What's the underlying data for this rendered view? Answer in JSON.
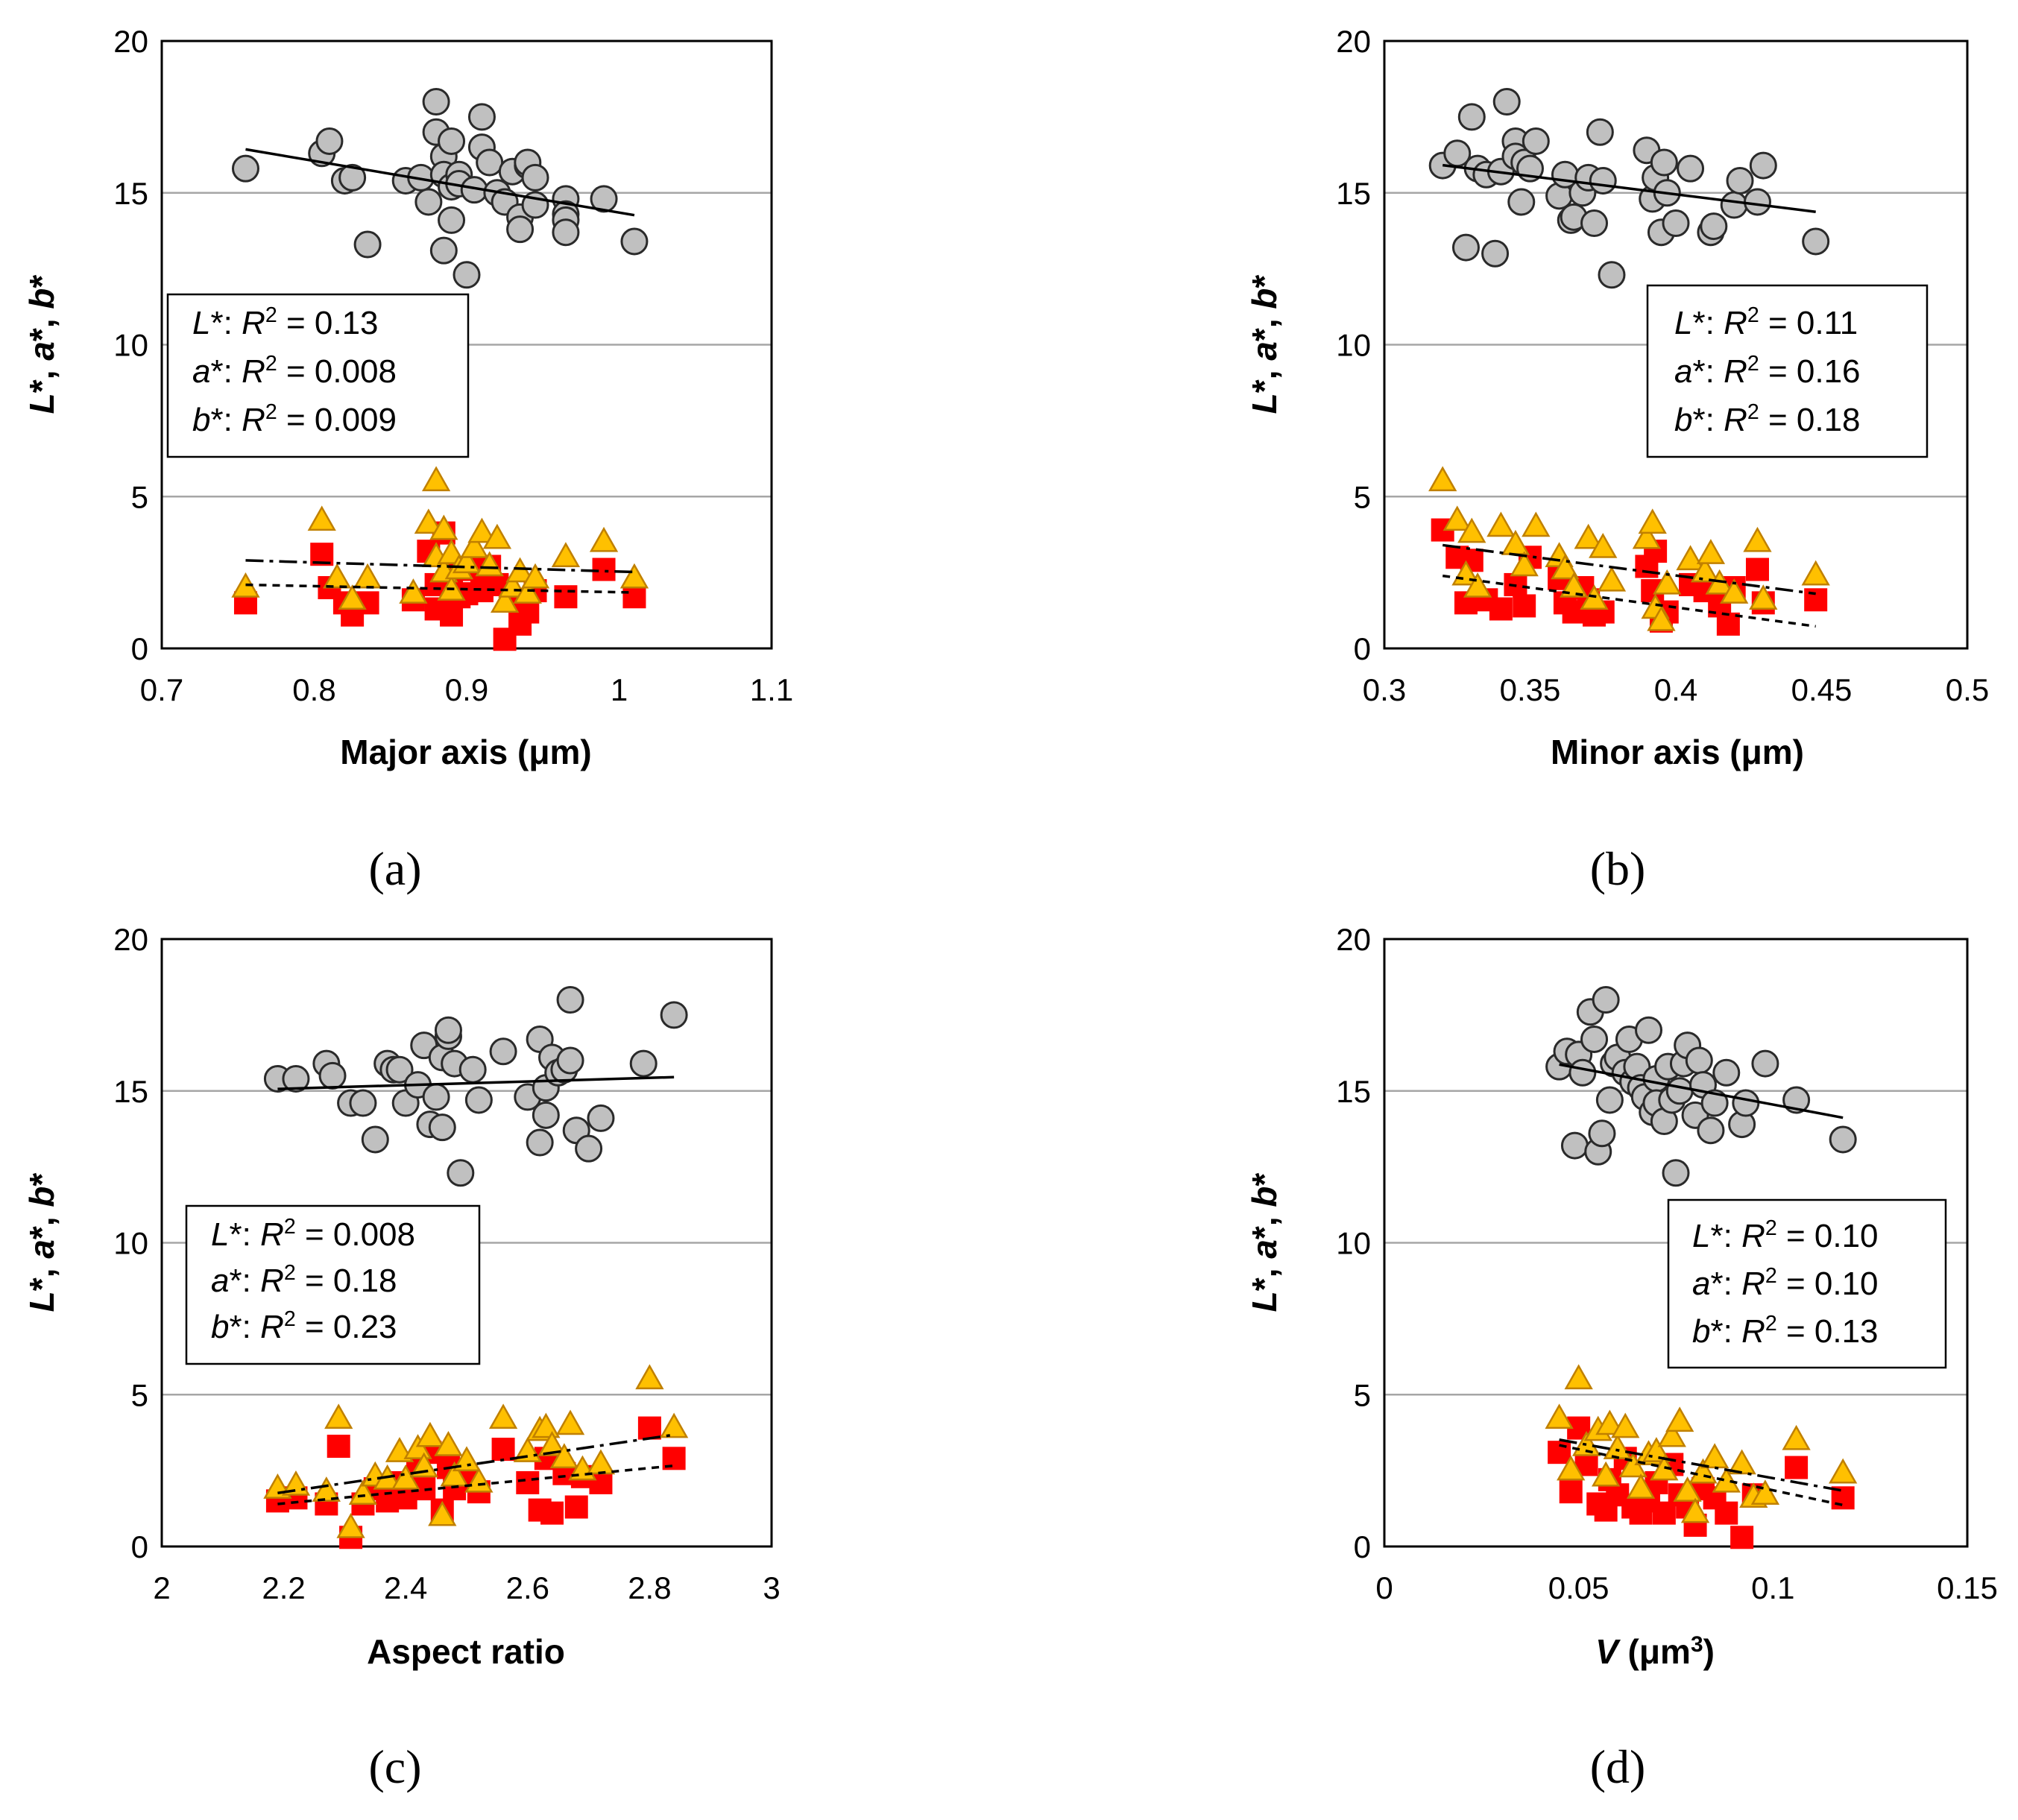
{
  "colors": {
    "L": "#c0c0c0",
    "a": "#ff0000",
    "b": "#ffc000",
    "grid": "#a6a6a6",
    "axis": "#000000"
  },
  "chart_data": [
    {
      "type": "scatter",
      "panel": "(a)",
      "xlabel": "Major axis (μm)",
      "ylabel": "L*, a*, b*",
      "xlim": [
        0.7,
        1.1
      ],
      "ylim": [
        0,
        20
      ],
      "xticks": [
        "0.7",
        "0.8",
        "0.9",
        "1",
        "1.1"
      ],
      "yticks": [
        "0",
        "5",
        "10",
        "15",
        "20"
      ],
      "legend": {
        "position": "middle-left",
        "lines": [
          "L*: R2 = 0.13",
          "a*: R2 = 0.008",
          "b*: R2 = 0.009"
        ]
      },
      "series": [
        {
          "name": "L*",
          "marker": "circle",
          "trend": {
            "slope": -8.5,
            "intercept": 22.85
          },
          "x": [
            0.755,
            0.805,
            0.81,
            0.82,
            0.825,
            0.835,
            0.86,
            0.87,
            0.875,
            0.88,
            0.88,
            0.885,
            0.885,
            0.89,
            0.89,
            0.895,
            0.89,
            0.885,
            0.895,
            0.9,
            0.905,
            0.91,
            0.91,
            0.915,
            0.92,
            0.925,
            0.93,
            0.935,
            0.935,
            0.94,
            0.94,
            0.945,
            0.945,
            0.965,
            0.965,
            0.965,
            0.965,
            0.99,
            1.01
          ],
          "y": [
            15.8,
            16.3,
            16.7,
            15.4,
            15.5,
            13.3,
            15.4,
            15.5,
            14.7,
            18,
            17,
            16.2,
            15.6,
            16.7,
            15.2,
            15.6,
            14.1,
            13.1,
            15.3,
            12.3,
            15.1,
            16.5,
            17.5,
            16,
            15,
            14.7,
            15.7,
            14.2,
            13.8,
            15.9,
            16,
            15.5,
            14.6,
            14.8,
            14.3,
            14.1,
            13.7,
            14.8,
            13.4
          ]
        },
        {
          "name": "a*",
          "marker": "square",
          "trend": {
            "slope": -1.0,
            "intercept": 2.85
          },
          "x": [
            0.755,
            0.805,
            0.81,
            0.82,
            0.825,
            0.835,
            0.865,
            0.875,
            0.88,
            0.88,
            0.885,
            0.89,
            0.89,
            0.895,
            0.9,
            0.905,
            0.91,
            0.915,
            0.92,
            0.925,
            0.93,
            0.935,
            0.94,
            0.945,
            0.965,
            0.99,
            1.01
          ],
          "y": [
            1.5,
            3.1,
            2,
            1.5,
            1.1,
            1.5,
            1.6,
            3.2,
            1.3,
            2.1,
            3.8,
            1.1,
            2.5,
            1.7,
            1.8,
            2.6,
            1.9,
            2.7,
            2.1,
            0.3,
            1.6,
            0.8,
            1.2,
            1.9,
            1.7,
            2.6,
            1.7
          ]
        },
        {
          "name": "b*",
          "marker": "triangle",
          "trend": {
            "slope": -1.5,
            "intercept": 4.03
          },
          "x": [
            0.755,
            0.805,
            0.815,
            0.825,
            0.835,
            0.865,
            0.875,
            0.88,
            0.88,
            0.885,
            0.885,
            0.89,
            0.89,
            0.895,
            0.9,
            0.905,
            0.91,
            0.915,
            0.92,
            0.925,
            0.93,
            0.935,
            0.94,
            0.945,
            0.965,
            0.99,
            1.01
          ],
          "y": [
            2,
            4.2,
            2.3,
            1.6,
            2.3,
            1.8,
            4.1,
            5.5,
            3,
            3.9,
            2.5,
            1.9,
            3.1,
            2.6,
            2.8,
            3.3,
            3.8,
            2.7,
            3.6,
            1.5,
            2,
            2.5,
            1.8,
            2.3,
            3,
            3.5,
            2.3
          ]
        }
      ]
    },
    {
      "type": "scatter",
      "panel": "(b)",
      "xlabel": "Minor axis (μm)",
      "ylabel": "L*, a*, b*",
      "xlim": [
        0.3,
        0.5
      ],
      "ylim": [
        0,
        20
      ],
      "xticks": [
        "0.3",
        "0.35",
        "0.4",
        "0.45",
        "0.5"
      ],
      "yticks": [
        "0",
        "5",
        "10",
        "15",
        "20"
      ],
      "legend": {
        "position": "middle-right",
        "lines": [
          "L*: R2 = 0.11",
          "a*: R2 = 0.16",
          "b*: R2 = 0.18"
        ]
      },
      "series": [
        {
          "name": "L*",
          "marker": "circle",
          "trend": {
            "slope": -12.0,
            "intercept": 19.75
          },
          "x": [
            0.32,
            0.325,
            0.328,
            0.33,
            0.332,
            0.335,
            0.338,
            0.34,
            0.342,
            0.345,
            0.345,
            0.347,
            0.348,
            0.35,
            0.352,
            0.36,
            0.362,
            0.364,
            0.365,
            0.368,
            0.37,
            0.372,
            0.374,
            0.375,
            0.378,
            0.39,
            0.392,
            0.393,
            0.395,
            0.396,
            0.397,
            0.4,
            0.405,
            0.412,
            0.413,
            0.42,
            0.422,
            0.428,
            0.43,
            0.448
          ],
          "y": [
            15.9,
            16.3,
            13.2,
            17.5,
            15.8,
            15.6,
            13,
            15.7,
            18,
            16.7,
            16.2,
            14.7,
            16,
            15.8,
            16.7,
            14.9,
            15.6,
            14.1,
            14.2,
            15,
            15.5,
            14,
            17,
            15.4,
            12.3,
            16.4,
            14.8,
            15.5,
            13.7,
            16,
            15,
            14,
            15.8,
            13.7,
            13.9,
            14.6,
            15.4,
            14.7,
            15.9,
            13.4
          ]
        },
        {
          "name": "a*",
          "marker": "square",
          "trend": {
            "slope": -13.0,
            "intercept": 6.55
          },
          "x": [
            0.32,
            0.325,
            0.328,
            0.33,
            0.335,
            0.34,
            0.345,
            0.348,
            0.35,
            0.36,
            0.362,
            0.365,
            0.368,
            0.37,
            0.372,
            0.375,
            0.39,
            0.392,
            0.393,
            0.395,
            0.397,
            0.405,
            0.41,
            0.415,
            0.418,
            0.42,
            0.428,
            0.43,
            0.448
          ],
          "y": [
            3.9,
            3,
            1.5,
            2.9,
            1.6,
            1.3,
            2.1,
            1.4,
            3,
            2.3,
            1.5,
            1.2,
            2,
            1.6,
            1.1,
            1.2,
            2.7,
            1.9,
            3.2,
            0.9,
            1.2,
            2.1,
            1.9,
            1.4,
            0.8,
            2,
            2.6,
            1.5,
            1.6
          ]
        },
        {
          "name": "b*",
          "marker": "triangle",
          "trend": {
            "slope": -12.5,
            "intercept": 7.4
          },
          "x": [
            0.32,
            0.325,
            0.328,
            0.33,
            0.332,
            0.34,
            0.345,
            0.348,
            0.352,
            0.36,
            0.362,
            0.365,
            0.37,
            0.372,
            0.375,
            0.378,
            0.39,
            0.392,
            0.393,
            0.395,
            0.397,
            0.405,
            0.41,
            0.412,
            0.415,
            0.42,
            0.428,
            0.43,
            0.448
          ],
          "y": [
            5.5,
            4.2,
            2.4,
            3.8,
            2,
            4,
            3.4,
            2.7,
            4,
            3,
            2.6,
            2,
            3.6,
            1.6,
            3.3,
            2.2,
            3.6,
            4.1,
            1.3,
            0.9,
            2.1,
            2.9,
            2.5,
            3.1,
            2.1,
            1.8,
            3.5,
            1.6,
            2.4
          ]
        }
      ]
    },
    {
      "type": "scatter",
      "panel": "(c)",
      "xlabel": "Aspect ratio",
      "ylabel": "L*, a*, b*",
      "xlim": [
        2,
        3
      ],
      "ylim": [
        0,
        20
      ],
      "xticks": [
        "2",
        "2.2",
        "2.4",
        "2.6",
        "2.8",
        "3"
      ],
      "yticks": [
        "0",
        "5",
        "10",
        "15",
        "20"
      ],
      "legend": {
        "position": "middle-left",
        "lines": [
          "L*: R2 = 0.008",
          "a*: R2 = 0.18",
          "b*: R2 = 0.23"
        ]
      },
      "series": [
        {
          "name": "L*",
          "marker": "circle",
          "trend": {
            "slope": 0.6,
            "intercept": 13.75
          },
          "x": [
            2.19,
            2.22,
            2.27,
            2.28,
            2.31,
            2.33,
            2.35,
            2.37,
            2.38,
            2.39,
            2.4,
            2.42,
            2.43,
            2.44,
            2.45,
            2.46,
            2.46,
            2.47,
            2.47,
            2.48,
            2.49,
            2.51,
            2.52,
            2.56,
            2.6,
            2.62,
            2.62,
            2.63,
            2.63,
            2.64,
            2.65,
            2.66,
            2.67,
            2.67,
            2.68,
            2.7,
            2.72,
            2.79,
            2.84
          ],
          "y": [
            15.4,
            15.4,
            15.9,
            15.5,
            14.6,
            14.6,
            13.4,
            15.9,
            15.7,
            15.7,
            14.6,
            15.2,
            16.5,
            13.9,
            14.8,
            13.8,
            16.1,
            16.8,
            17,
            15.9,
            12.3,
            15.7,
            14.7,
            16.3,
            14.8,
            13.3,
            16.7,
            14.2,
            15.1,
            16.1,
            15.6,
            15.7,
            18,
            16,
            13.7,
            13.1,
            14.1,
            15.9,
            17.5
          ]
        },
        {
          "name": "a*",
          "marker": "square",
          "trend": {
            "slope": 1.94,
            "intercept": -2.85
          },
          "x": [
            2.19,
            2.22,
            2.27,
            2.29,
            2.31,
            2.33,
            2.35,
            2.37,
            2.39,
            2.4,
            2.42,
            2.43,
            2.44,
            2.46,
            2.47,
            2.48,
            2.5,
            2.52,
            2.56,
            2.6,
            2.62,
            2.63,
            2.64,
            2.66,
            2.68,
            2.69,
            2.72,
            2.8,
            2.84
          ],
          "y": [
            1.5,
            1.6,
            1.4,
            3.3,
            0.3,
            1.4,
            1.9,
            1.5,
            2.1,
            1.6,
            2.7,
            1.9,
            3.1,
            1.2,
            2.6,
            1.9,
            2.2,
            1.8,
            3.2,
            2.1,
            1.2,
            2.9,
            1.1,
            2.4,
            1.3,
            2.3,
            2.1,
            3.9,
            2.9
          ]
        },
        {
          "name": "b*",
          "marker": "triangle",
          "trend": {
            "slope": 2.95,
            "intercept": -4.7
          },
          "x": [
            2.19,
            2.22,
            2.27,
            2.29,
            2.31,
            2.33,
            2.35,
            2.37,
            2.39,
            2.4,
            2.42,
            2.43,
            2.44,
            2.46,
            2.47,
            2.48,
            2.5,
            2.52,
            2.56,
            2.6,
            2.62,
            2.63,
            2.64,
            2.66,
            2.67,
            2.69,
            2.72,
            2.8,
            2.84
          ],
          "y": [
            1.9,
            2,
            1.8,
            4.2,
            0.6,
            1.7,
            2.3,
            2.2,
            3.1,
            2.2,
            3.2,
            2.6,
            3.6,
            1,
            3.3,
            2.3,
            2.8,
            2.1,
            4.2,
            3.1,
            3.8,
            3.9,
            3.3,
            2.9,
            4,
            2.5,
            2.7,
            5.5,
            3.9
          ]
        }
      ]
    },
    {
      "type": "scatter",
      "panel": "(d)",
      "xlabel": "V (μm3)",
      "ylabel": "L*, a*, b*",
      "xlim": [
        0,
        0.15
      ],
      "ylim": [
        0,
        20
      ],
      "xticks": [
        "0",
        "0.05",
        "0.1",
        "0.15"
      ],
      "yticks": [
        "0",
        "5",
        "10",
        "15",
        "20"
      ],
      "legend": {
        "position": "middle-right",
        "lines": [
          "L*: R2 = 0.10",
          "a*: R2 = 0.10",
          "b*: R2 = 0.13"
        ]
      },
      "series": [
        {
          "name": "L*",
          "marker": "circle",
          "trend": {
            "slope": -24,
            "intercept": 16.95
          },
          "x": [
            0.045,
            0.047,
            0.049,
            0.05,
            0.051,
            0.053,
            0.054,
            0.055,
            0.056,
            0.057,
            0.058,
            0.059,
            0.06,
            0.062,
            0.063,
            0.064,
            0.065,
            0.066,
            0.067,
            0.068,
            0.069,
            0.07,
            0.07,
            0.072,
            0.073,
            0.074,
            0.075,
            0.076,
            0.077,
            0.078,
            0.08,
            0.081,
            0.082,
            0.084,
            0.085,
            0.088,
            0.092,
            0.093,
            0.098,
            0.106,
            0.118
          ],
          "y": [
            15.8,
            16.3,
            13.2,
            16.2,
            15.6,
            17.6,
            16.7,
            13,
            13.6,
            18,
            14.7,
            15.9,
            16.1,
            15.6,
            16.7,
            15.3,
            15.8,
            15.1,
            14.8,
            17,
            14.3,
            15.4,
            14.6,
            14,
            15.8,
            14.7,
            12.3,
            15,
            15.9,
            16.5,
            14.2,
            16,
            15.2,
            13.7,
            14.6,
            15.6,
            13.9,
            14.6,
            15.9,
            14.7,
            13.4
          ]
        },
        {
          "name": "a*",
          "marker": "square",
          "trend": {
            "slope": -27,
            "intercept": 4.55
          },
          "x": [
            0.045,
            0.048,
            0.05,
            0.052,
            0.055,
            0.057,
            0.058,
            0.06,
            0.062,
            0.064,
            0.066,
            0.068,
            0.07,
            0.072,
            0.074,
            0.076,
            0.078,
            0.08,
            0.082,
            0.085,
            0.088,
            0.092,
            0.095,
            0.106,
            0.118
          ],
          "y": [
            3.1,
            1.8,
            3.9,
            2.7,
            1.4,
            1.2,
            2.2,
            1.7,
            2.9,
            1.3,
            1.1,
            1.5,
            2.1,
            1.1,
            2.7,
            1.7,
            1.3,
            0.7,
            1.9,
            1.6,
            1.1,
            0.3,
            1.7,
            2.6,
            1.6
          ]
        },
        {
          "name": "b*",
          "marker": "triangle",
          "trend": {
            "slope": -23,
            "intercept": 4.55
          },
          "x": [
            0.045,
            0.048,
            0.05,
            0.052,
            0.055,
            0.057,
            0.058,
            0.06,
            0.062,
            0.064,
            0.066,
            0.068,
            0.07,
            0.072,
            0.074,
            0.076,
            0.078,
            0.08,
            0.082,
            0.085,
            0.088,
            0.092,
            0.095,
            0.098,
            0.106,
            0.118
          ],
          "y": [
            4.2,
            2.5,
            5.5,
            3.3,
            3.8,
            2.3,
            4,
            3.2,
            3.9,
            2.6,
            1.9,
            3,
            3.1,
            2.5,
            3.6,
            4.1,
            1.8,
            1.1,
            2.4,
            2.9,
            2.1,
            2.7,
            1.6,
            1.7,
            3.5,
            2.4
          ]
        }
      ]
    }
  ]
}
